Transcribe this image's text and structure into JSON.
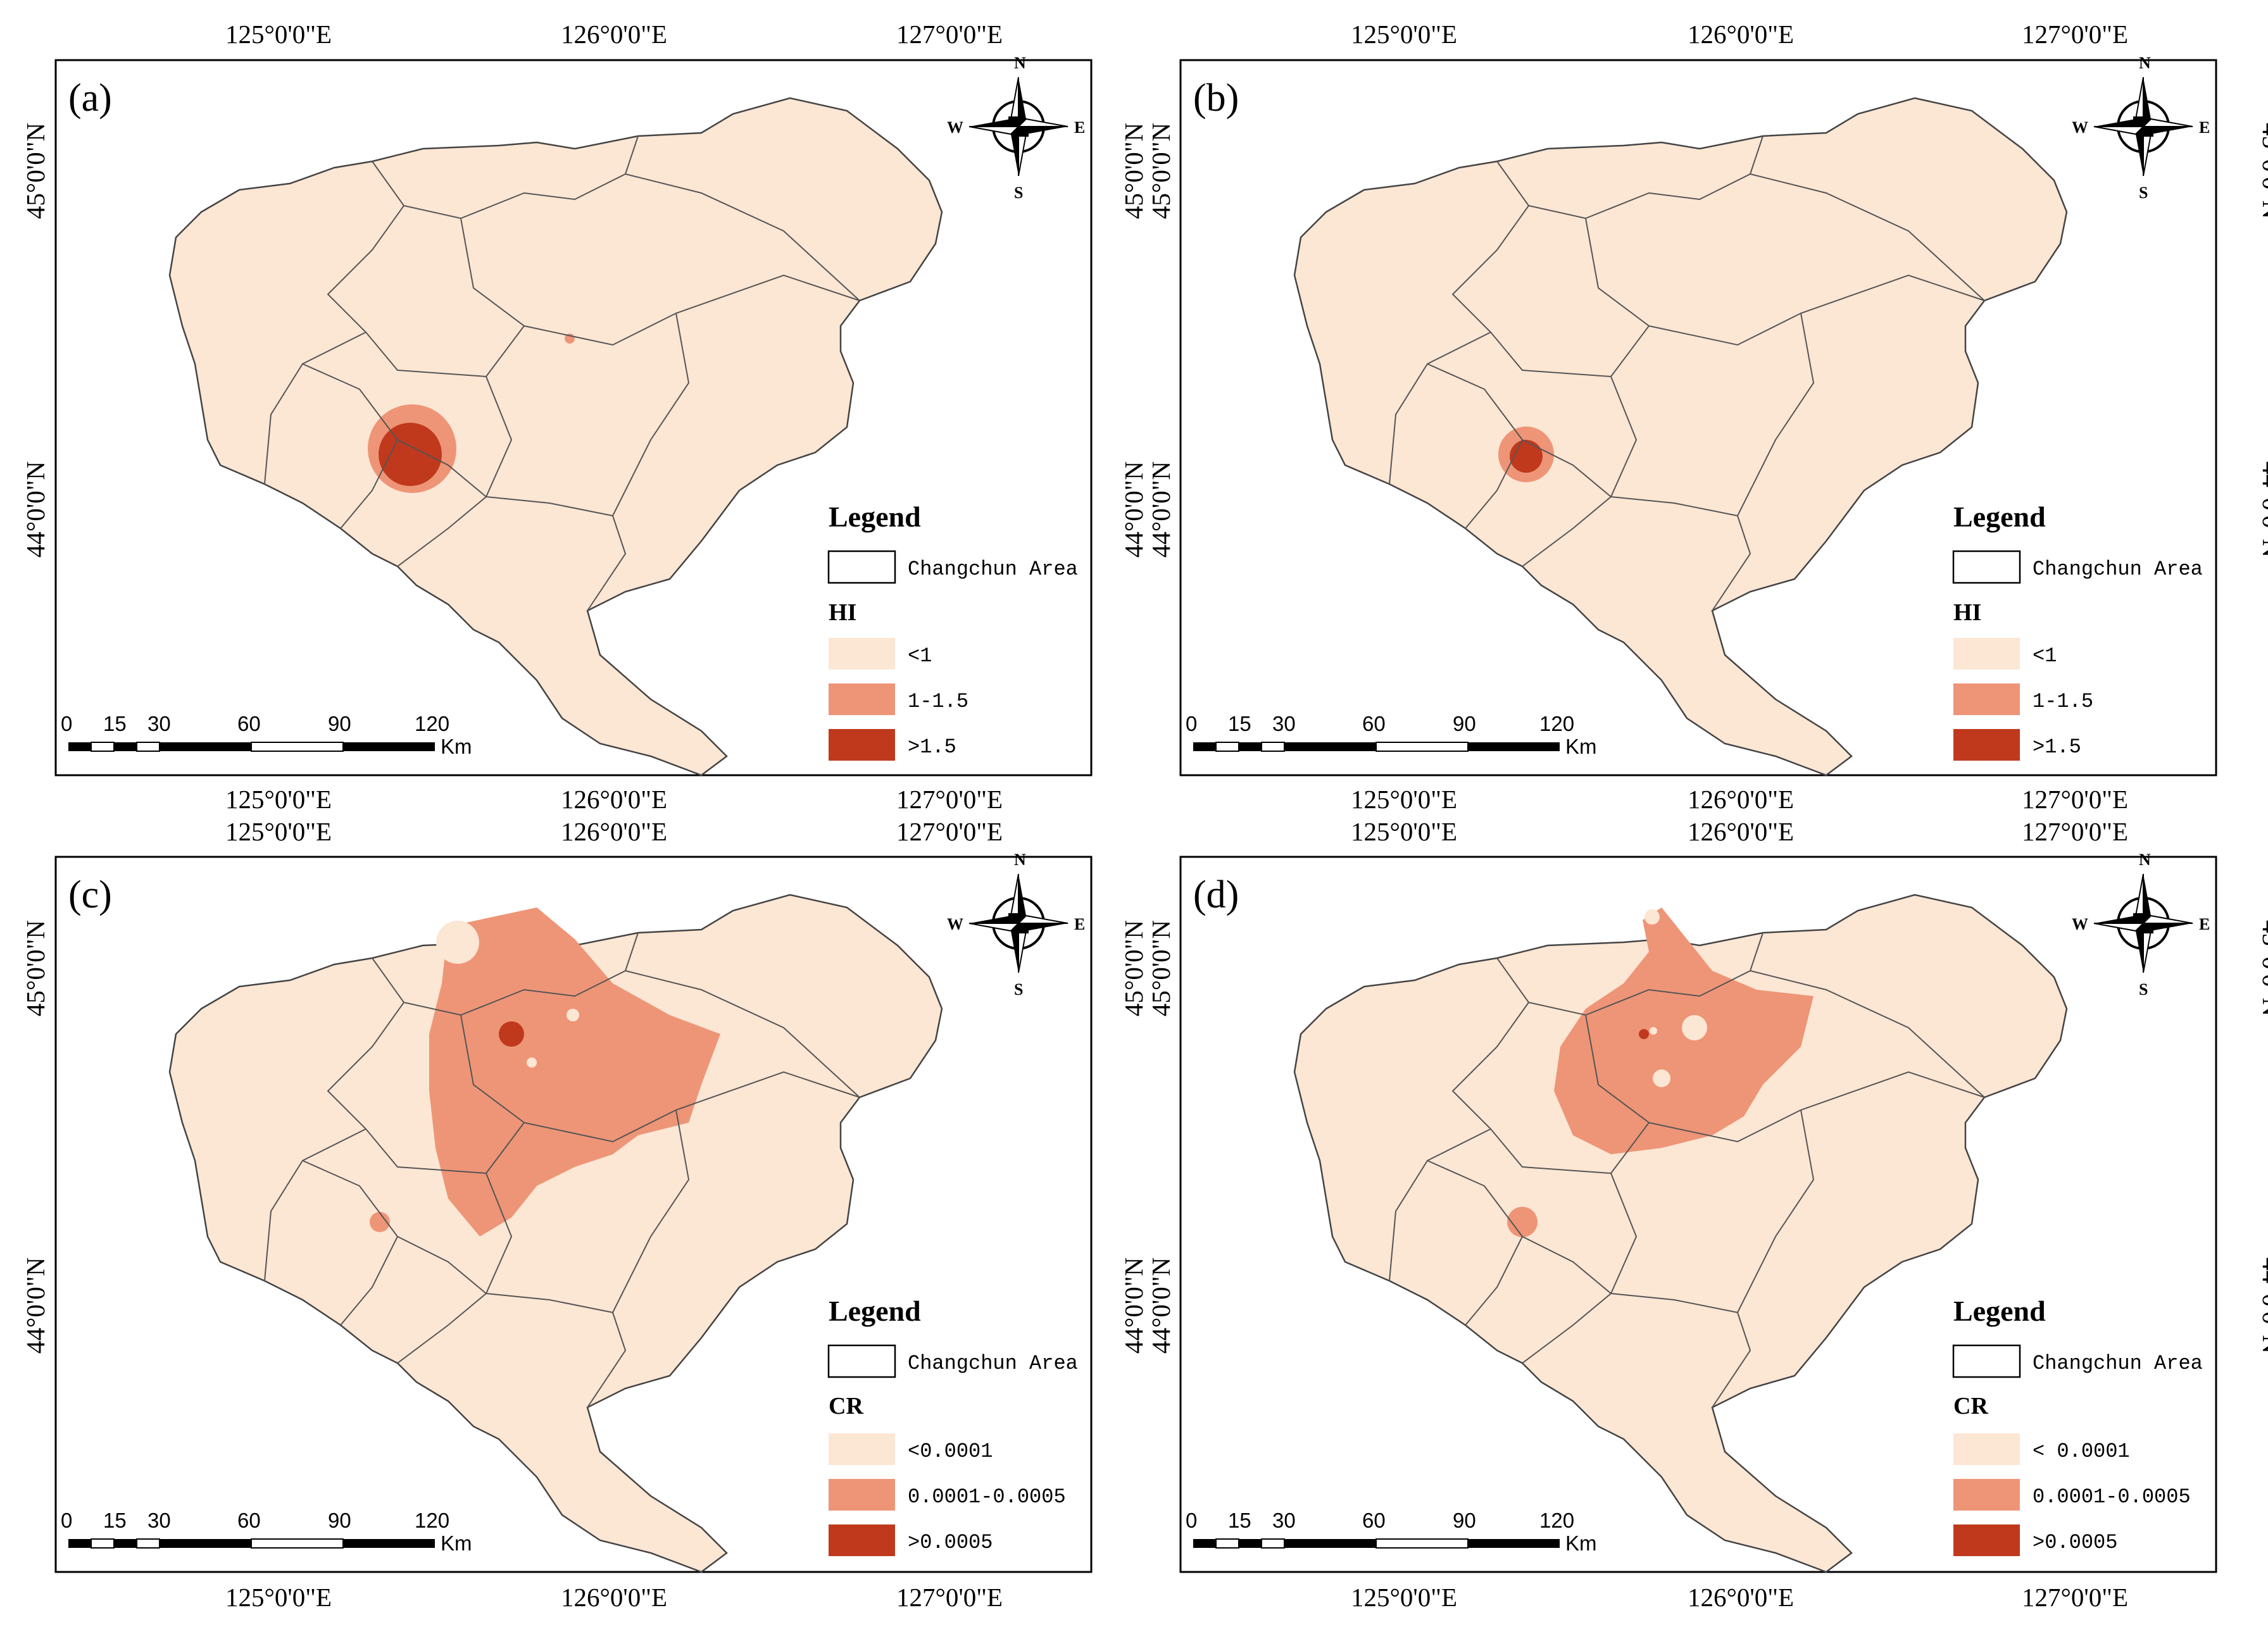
{
  "colors": {
    "low": "#fce6d4",
    "mid": "#ee9577",
    "high": "#c0391d",
    "frame": "#000000",
    "background": "#ffffff"
  },
  "axes": {
    "lon_labels": [
      "125°0'0\"E",
      "126°0'0\"E",
      "127°0'0\"E"
    ],
    "lat_labels": [
      "45°0'0\"N",
      "44°0'0\"N"
    ]
  },
  "scalebar": {
    "ticks": [
      "0",
      "15",
      "30",
      "60",
      "90",
      "120"
    ],
    "unit": "Km"
  },
  "compass": {
    "n": "N",
    "s": "S",
    "e": "E",
    "w": "W"
  },
  "panels": [
    {
      "label": "(a)",
      "legend": {
        "title": "Legend",
        "area_label": "Changchun Area",
        "variable": "HI",
        "classes": [
          {
            "label": "<1",
            "color": "low"
          },
          {
            "label": "1-1.5",
            "color": "mid"
          },
          {
            "label": ">1.5",
            "color": "high"
          }
        ]
      }
    },
    {
      "label": "(b)",
      "legend": {
        "title": "Legend",
        "area_label": "Changchun Area",
        "variable": "HI",
        "classes": [
          {
            "label": "<1",
            "color": "low"
          },
          {
            "label": "1-1.5",
            "color": "mid"
          },
          {
            "label": ">1.5",
            "color": "high"
          }
        ]
      }
    },
    {
      "label": "(c)",
      "legend": {
        "title": "Legend",
        "area_label": "Changchun Area",
        "variable": "CR",
        "classes": [
          {
            "label": "<0.0001",
            "color": "low"
          },
          {
            "label": "0.0001-0.0005",
            "color": "mid"
          },
          {
            "label": ">0.0005",
            "color": "high"
          }
        ]
      }
    },
    {
      "label": "(d)",
      "legend": {
        "title": "Legend",
        "area_label": "Changchun Area",
        "variable": "CR",
        "classes": [
          {
            "label": "< 0.0001",
            "color": "low"
          },
          {
            "label": "0.0001-0.0005",
            "color": "mid"
          },
          {
            "label": ">0.0005",
            "color": "high"
          }
        ]
      }
    }
  ]
}
